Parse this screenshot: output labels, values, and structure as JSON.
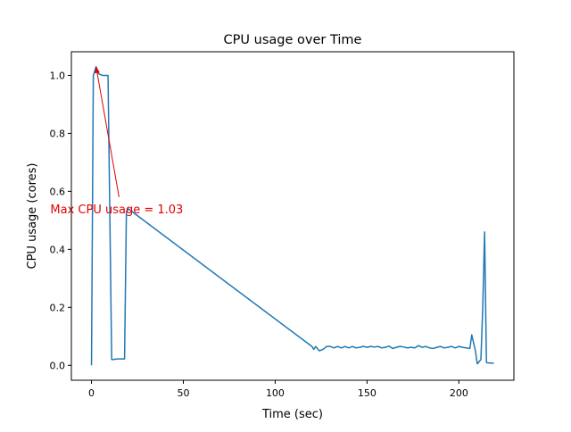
{
  "chart_data": {
    "type": "line",
    "title": "CPU usage over Time",
    "xlabel": "Time (sec)",
    "ylabel": "CPU usage (cores)",
    "xlim": [
      -10.95,
      229.95
    ],
    "ylim": [
      -0.0515,
      1.0815
    ],
    "xticks": [
      0,
      50,
      100,
      150,
      200
    ],
    "xtick_labels": [
      "0",
      "50",
      "100",
      "150",
      "200"
    ],
    "yticks": [
      0.0,
      0.2,
      0.4,
      0.6,
      0.8,
      1.0
    ],
    "ytick_labels": [
      "0.0",
      "0.2",
      "0.4",
      "0.6",
      "0.8",
      "1.0"
    ],
    "grid": false,
    "series": [
      {
        "color": "#1f77b4",
        "x": [
          0,
          1,
          2.5,
          4,
          6,
          8,
          9,
          11,
          12,
          14,
          16,
          18,
          19,
          20,
          120,
          121,
          122,
          124,
          126,
          128,
          130,
          132,
          134,
          136,
          138,
          140,
          142,
          144,
          146,
          148,
          150,
          152,
          154,
          156,
          158,
          160,
          162,
          164,
          166,
          168,
          170,
          172,
          174,
          176,
          178,
          180,
          182,
          184,
          186,
          188,
          190,
          192,
          194,
          196,
          198,
          200,
          202,
          204,
          206,
          207,
          209,
          210,
          212,
          213,
          214,
          215,
          216,
          217,
          219
        ],
        "y": [
          0.0,
          1.0,
          1.03,
          1.005,
          1.0,
          1.0,
          1.0,
          0.02,
          0.02,
          0.022,
          0.022,
          0.022,
          0.53,
          0.54,
          0.065,
          0.055,
          0.065,
          0.05,
          0.055,
          0.065,
          0.065,
          0.06,
          0.065,
          0.06,
          0.065,
          0.06,
          0.065,
          0.06,
          0.062,
          0.065,
          0.062,
          0.065,
          0.063,
          0.065,
          0.06,
          0.062,
          0.066,
          0.058,
          0.062,
          0.065,
          0.063,
          0.06,
          0.062,
          0.06,
          0.068,
          0.062,
          0.065,
          0.06,
          0.058,
          0.062,
          0.065,
          0.06,
          0.062,
          0.065,
          0.06,
          0.065,
          0.062,
          0.06,
          0.058,
          0.105,
          0.05,
          0.005,
          0.02,
          0.2,
          0.46,
          0.01,
          0.008,
          0.008,
          0.007
        ]
      }
    ],
    "annotation": {
      "text": "Max CPU usage = 1.03",
      "color": "#e00000",
      "point": [
        2.5,
        1.03
      ],
      "text_anchor_point": [
        15,
        0.58
      ]
    }
  }
}
